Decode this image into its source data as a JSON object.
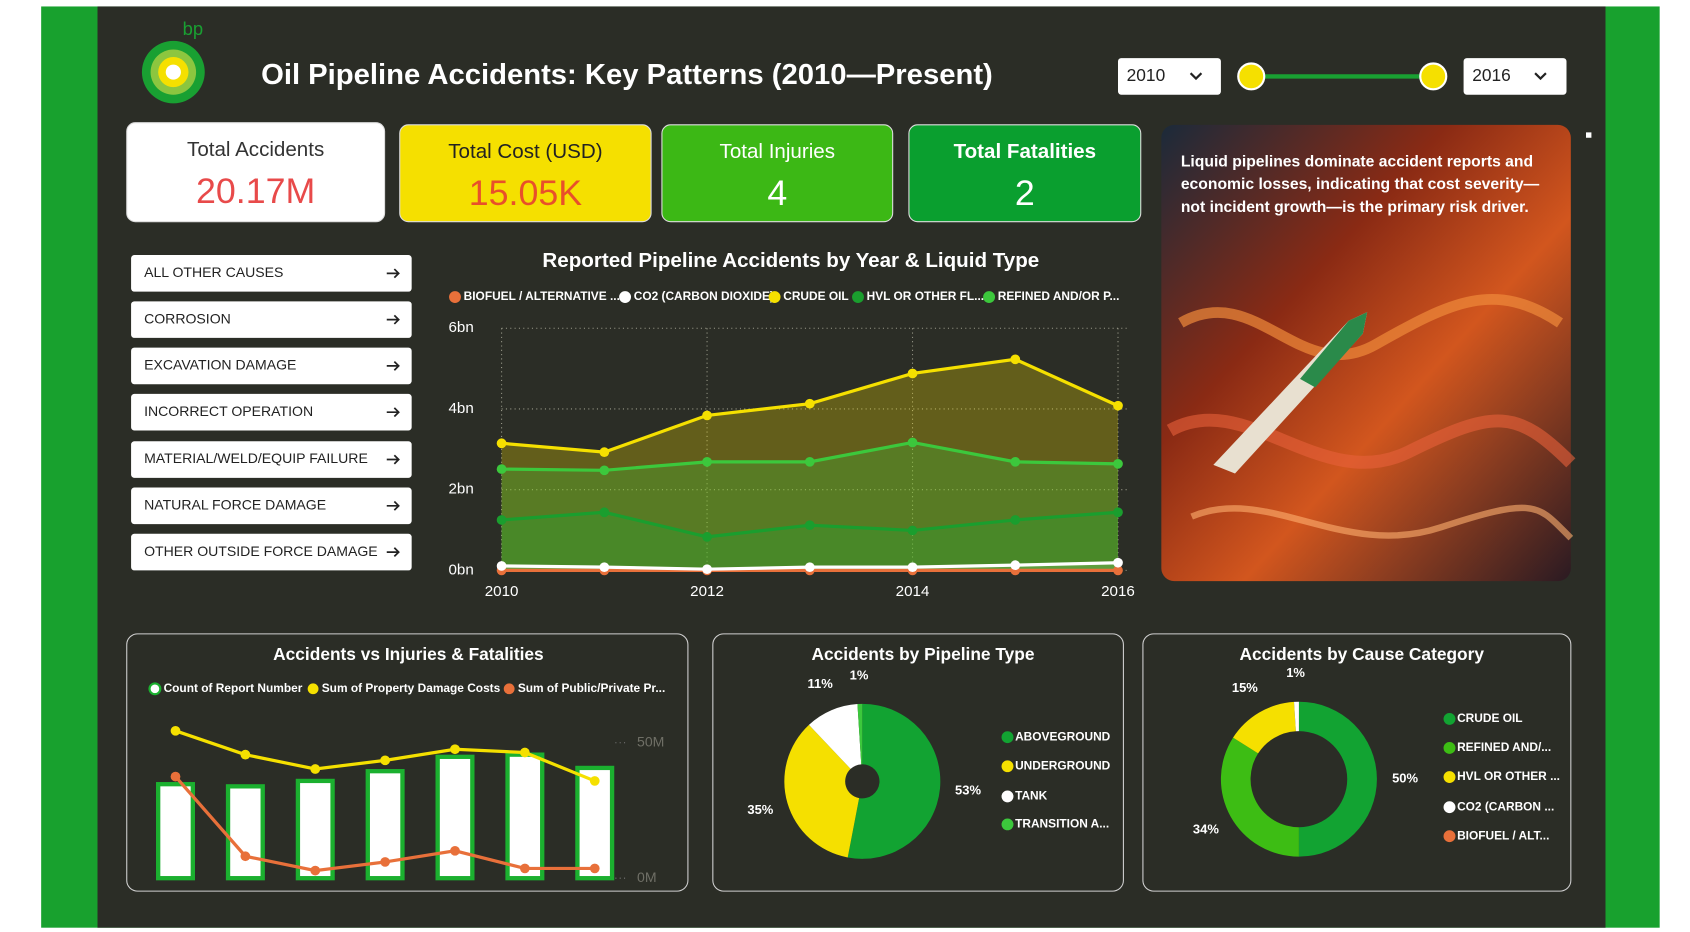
{
  "header": {
    "logo_text": "bp",
    "title": "Oil Pipeline Accidents: Key Patterns (2010—Present)"
  },
  "year_slicer": {
    "start": "2010",
    "end": "2016"
  },
  "kpis": [
    {
      "label": "Total Accidents",
      "value": "20.17M"
    },
    {
      "label": "Total Cost (USD)",
      "value": "15.05K"
    },
    {
      "label": "Total Injuries",
      "value": "4"
    },
    {
      "label": "Total Fatalities",
      "value": "2"
    }
  ],
  "cause_buttons": [
    "ALL OTHER CAUSES",
    "CORROSION",
    "EXCAVATION DAMAGE",
    "INCORRECT OPERATION",
    "MATERIAL/WELD/EQUIP FAILURE",
    "NATURAL FORCE DAMAGE",
    "OTHER OUTSIDE FORCE DAMAGE"
  ],
  "insight_lines": [
    "Liquid pipelines dominate accident reports and",
    "economic losses, indicating that cost severity—",
    "not incident growth—is the primary risk driver."
  ],
  "chart_data": [
    {
      "type": "area",
      "title": "Reported Pipeline Accidents by Year & Liquid Type",
      "x": [
        2010,
        2011,
        2012,
        2013,
        2014,
        2015,
        2016
      ],
      "xlim": [
        2010,
        2016
      ],
      "xticks": [
        2010,
        2012,
        2014,
        2016
      ],
      "ylim": [
        0,
        6
      ],
      "yticks": [
        {
          "value": 0,
          "label": "0bn"
        },
        {
          "value": 2,
          "label": "2bn"
        },
        {
          "value": 4,
          "label": "4bn"
        },
        {
          "value": 6,
          "label": "6bn"
        }
      ],
      "grid": true,
      "series": [
        {
          "name": "BIOFUEL / ALTERNATIVE ...",
          "color": "#e8703a",
          "values": [
            0,
            0,
            0,
            0,
            0,
            0,
            0
          ]
        },
        {
          "name": "CO2 (CARBON DIOXIDE)",
          "color": "#ffffff",
          "values": [
            0.11,
            0.08,
            0.03,
            0.08,
            0.08,
            0.13,
            0.19
          ]
        },
        {
          "name": "CRUDE OIL",
          "color": "#f5e000",
          "values": [
            3.15,
            2.93,
            3.84,
            4.13,
            4.88,
            5.23,
            4.08
          ]
        },
        {
          "name": "HVL OR OTHER FL...",
          "color": "#1a9e2e",
          "values": [
            1.25,
            1.44,
            0.83,
            1.12,
            0.99,
            1.25,
            1.44
          ]
        },
        {
          "name": "REFINED AND/OR P...",
          "color": "#3cc83c",
          "values": [
            2.51,
            2.48,
            2.69,
            2.69,
            3.17,
            2.69,
            2.64
          ]
        }
      ]
    },
    {
      "type": "combo",
      "title": "Accidents vs Injuries & Fatalities",
      "categories": [
        null,
        null,
        null,
        null,
        null,
        null,
        null
      ],
      "ylim": [
        0,
        58
      ],
      "yticks": [
        {
          "value": 0,
          "label": "0M"
        },
        {
          "value": 50,
          "label": "50M"
        }
      ],
      "series": [
        {
          "name": "Count of Report Number",
          "type": "bar",
          "color": "#1bb02f",
          "values": [
            34.7,
            33.9,
            35.9,
            39.5,
            44.8,
            45.6,
            40.7
          ]
        },
        {
          "name": "Sum of Property Damage Costs",
          "type": "line",
          "color": "#f5e000",
          "values": [
            54.4,
            45.6,
            40.3,
            43.5,
            47.6,
            46.4,
            35.9
          ]
        },
        {
          "name": "Sum of Public/Private Pr...",
          "type": "line",
          "color": "#e8703a",
          "values": [
            37.5,
            8.1,
            2.8,
            6.0,
            10.1,
            3.6,
            3.6
          ]
        }
      ]
    },
    {
      "type": "donut",
      "title": "Accidents by Pipeline Type",
      "hole": 0.22,
      "categories": [
        "ABOVEGROUND",
        "UNDERGROUND",
        "TANK",
        "TRANSITION A..."
      ],
      "values": [
        53,
        35,
        11,
        1
      ],
      "value_labels": [
        "53%",
        "35%",
        "11%",
        "1%"
      ],
      "colors": [
        "#12a332",
        "#f5e000",
        "#ffffff",
        "#3cc83c"
      ]
    },
    {
      "type": "donut",
      "title": "Accidents by Cause Category",
      "hole": 0.62,
      "categories": [
        "CRUDE OIL",
        "REFINED AND/...",
        "HVL OR OTHER ...",
        "CO2 (CARBON ...",
        "BIOFUEL / ALT..."
      ],
      "values": [
        50,
        34,
        15,
        1,
        0
      ],
      "value_labels": [
        "50%",
        "34%",
        "15%",
        "1%",
        null
      ],
      "colors": [
        "#12a332",
        "#3dbd14",
        "#f5e000",
        "#ffffff",
        "#e8703a"
      ]
    }
  ]
}
